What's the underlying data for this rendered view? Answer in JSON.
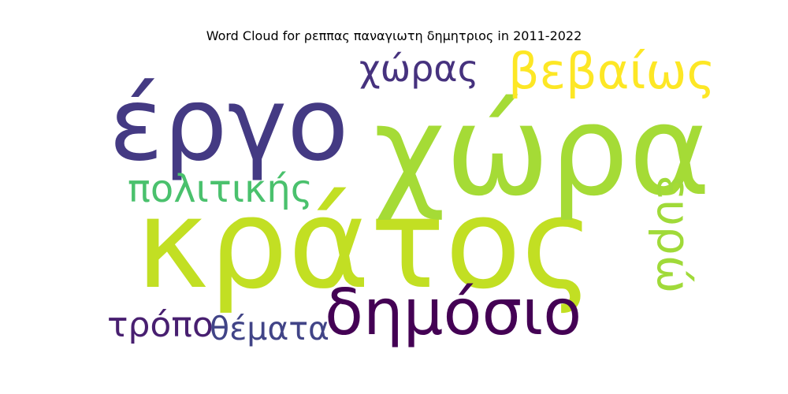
{
  "chart_data": {
    "type": "wordcloud",
    "title": "Word Cloud for ρεππας παναγιωτη δημητριος in 2011-2022",
    "words": [
      {
        "text": "κράτος",
        "weight": 100,
        "color": "#c2df23"
      },
      {
        "text": "χώρα",
        "weight": 93,
        "color": "#a5db36"
      },
      {
        "text": "έργο",
        "weight": 78,
        "color": "#443a83"
      },
      {
        "text": "δημόσιο",
        "weight": 47,
        "color": "#440154"
      },
      {
        "text": "βεβαίως",
        "weight": 38,
        "color": "#fde725"
      },
      {
        "text": "ευρώ",
        "weight": 35,
        "color": "#a0da39"
      },
      {
        "text": "πολιτικής",
        "weight": 30,
        "color": "#4ac16d"
      },
      {
        "text": "χώρας",
        "weight": 29,
        "color": "#46327e"
      },
      {
        "text": "τρόπο",
        "weight": 28,
        "color": "#481f70"
      },
      {
        "text": "θέματα",
        "weight": 26,
        "color": "#414487"
      }
    ]
  }
}
